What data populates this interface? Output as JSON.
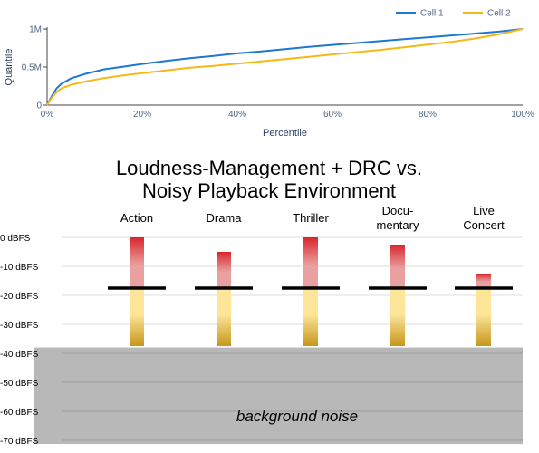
{
  "chart_data": [
    {
      "type": "line",
      "xlabel": "Percentile",
      "ylabel": "Quantile",
      "xlim": [
        0,
        100
      ],
      "ylim": [
        0,
        1000000
      ],
      "x_ticks": [
        "0%",
        "20%",
        "40%",
        "60%",
        "80%",
        "100%"
      ],
      "y_ticks": [
        "0",
        "0.5M",
        "1M"
      ],
      "legend_position": "top-right",
      "series": [
        {
          "name": "Cell 1",
          "color": "#1f77d4",
          "x": [
            0,
            1,
            2,
            3,
            5,
            8,
            12,
            16,
            20,
            25,
            30,
            35,
            40,
            45,
            50,
            55,
            60,
            65,
            70,
            75,
            80,
            85,
            90,
            95,
            100
          ],
          "y": [
            0,
            120000,
            220000,
            280000,
            350000,
            410000,
            470000,
            505000,
            540000,
            580000,
            615000,
            645000,
            680000,
            705000,
            735000,
            765000,
            790000,
            815000,
            840000,
            865000,
            890000,
            915000,
            940000,
            965000,
            1000000
          ]
        },
        {
          "name": "Cell 2",
          "color": "#f5b816",
          "x": [
            0,
            1,
            2,
            3,
            5,
            8,
            12,
            16,
            20,
            25,
            30,
            35,
            40,
            45,
            50,
            55,
            60,
            65,
            70,
            75,
            80,
            85,
            90,
            95,
            100
          ],
          "y": [
            0,
            100000,
            170000,
            220000,
            265000,
            310000,
            355000,
            390000,
            420000,
            455000,
            490000,
            515000,
            545000,
            575000,
            605000,
            635000,
            665000,
            695000,
            725000,
            760000,
            795000,
            830000,
            875000,
            930000,
            1000000
          ]
        }
      ]
    },
    {
      "type": "bar",
      "title_lines": [
        "Loudness-Management + DRC vs.",
        "Noisy Playback Environment"
      ],
      "ylim": [
        -70,
        0
      ],
      "y_ticks": [
        0,
        -10,
        -20,
        -30,
        -40,
        -50,
        -60,
        -70
      ],
      "y_tick_labels": [
        "0 dBFS",
        "-10 dBFS",
        "-20 dBFS",
        "-30 dBFS",
        "-40 dBFS",
        "-50 dBFS",
        "-60 dBFS",
        "-70 dBFS"
      ],
      "categories": [
        {
          "lines": [
            "Action"
          ],
          "peak": 0,
          "target": -17.5,
          "bottom": -37.5
        },
        {
          "lines": [
            "Drama"
          ],
          "peak": -5,
          "target": -17.5,
          "bottom": -37.5
        },
        {
          "lines": [
            "Thriller"
          ],
          "peak": 0,
          "target": -17.5,
          "bottom": -37.5
        },
        {
          "lines": [
            "Docu-",
            "mentary"
          ],
          "peak": -2.5,
          "target": -17.5,
          "bottom": -37.5
        },
        {
          "lines": [
            "Live",
            "Concert"
          ],
          "peak": -12.5,
          "target": -17.5,
          "bottom": -37.5
        }
      ],
      "noise_floor": -38,
      "noise_label": "background noise",
      "colors": {
        "peak_top": "#d9262c",
        "peak_mid": "#e8a0a0",
        "body_top": "#fde59a",
        "body_bottom": "#c8961a",
        "noise": "#b8b8b8",
        "target_line": "#000000"
      }
    }
  ]
}
